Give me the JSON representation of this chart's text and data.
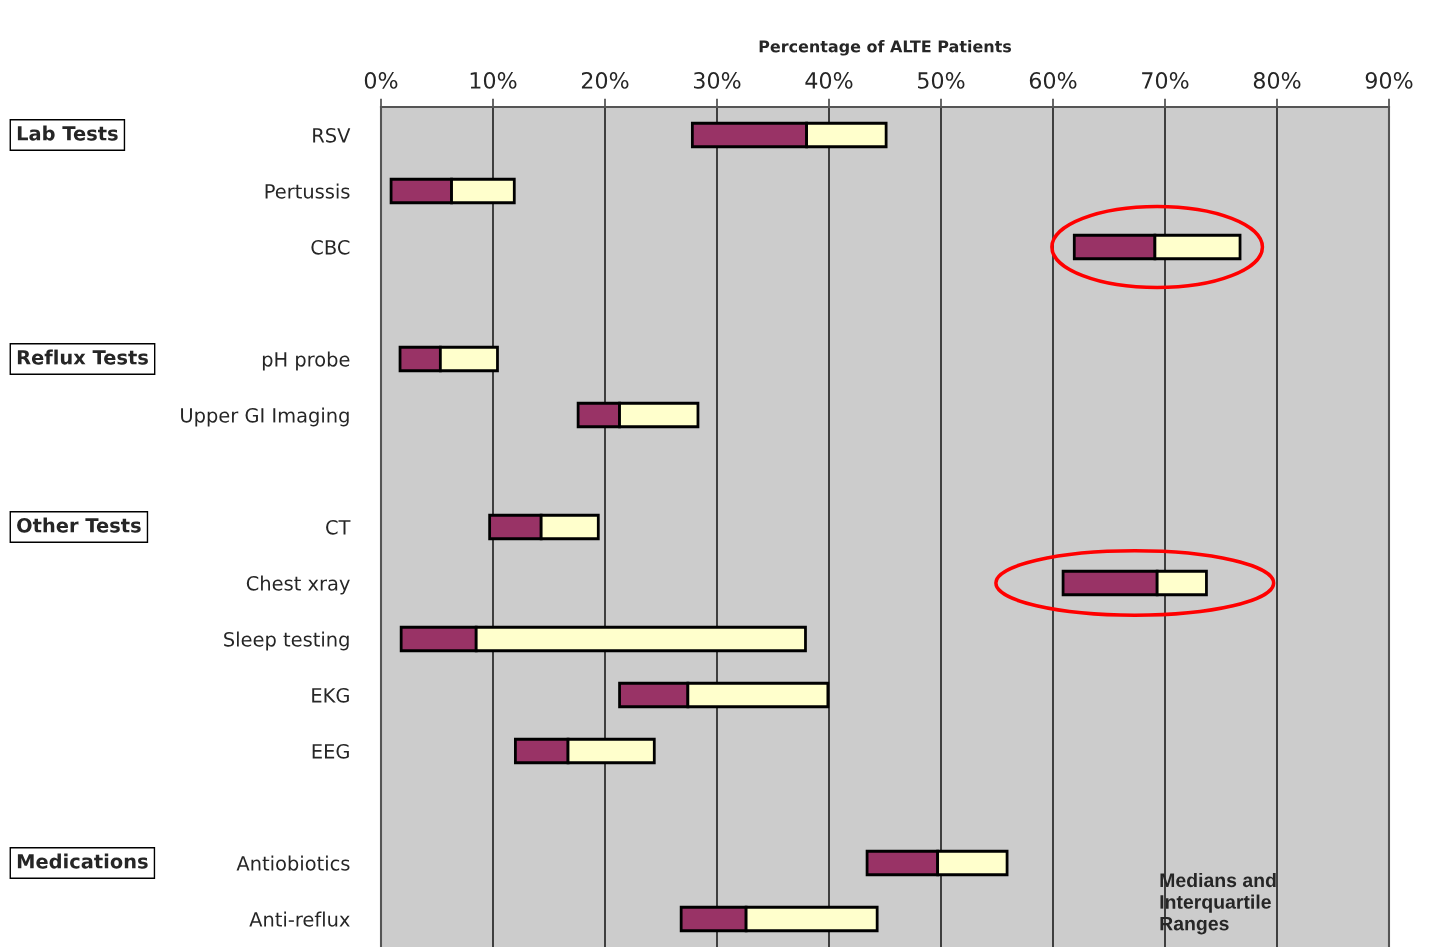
{
  "chart_data": {
    "type": "bar",
    "orientation": "horizontal",
    "xlabel": "Percentage of ALTE Patients",
    "categories": [
      "RSV",
      "Pertussis",
      "CBC",
      null,
      "pH probe",
      "Upper GI Imaging",
      null,
      "CT",
      "Chest xray",
      "Sleep testing",
      "EKG",
      "EEG",
      null,
      "Antiobiotics",
      "Anti-reflux"
    ],
    "series": [
      {
        "color": "#993366",
        "base": [
          27.8,
          0.9,
          61.9,
          null,
          1.7,
          17.6,
          null,
          9.7,
          60.9,
          1.8,
          21.3,
          12.0,
          null,
          43.4,
          26.8
        ],
        "values": [
          10.2,
          5.4,
          7.2,
          null,
          3.6,
          3.7,
          null,
          4.6,
          8.4,
          6.7,
          6.1,
          4.7,
          null,
          6.3,
          5.8
        ]
      },
      {
        "color": "#ffffcc",
        "base": [
          38.0,
          6.3,
          69.1,
          null,
          5.3,
          21.3,
          null,
          14.3,
          69.3,
          8.5,
          27.4,
          16.7,
          null,
          49.7,
          32.6
        ],
        "values": [
          7.1,
          5.6,
          7.6,
          null,
          5.1,
          7.0,
          null,
          5.1,
          4.4,
          29.4,
          12.5,
          7.7,
          null,
          6.2,
          11.7
        ]
      }
    ],
    "xlim": [
      0,
      90
    ],
    "xticks": [
      {
        "value": 0,
        "label": "0%"
      },
      {
        "value": 10,
        "label": "10%"
      },
      {
        "value": 20,
        "label": "20%"
      },
      {
        "value": 30,
        "label": "30%"
      },
      {
        "value": 40,
        "label": "40%"
      },
      {
        "value": 50,
        "label": "50%"
      },
      {
        "value": 60,
        "label": "60%"
      },
      {
        "value": 70,
        "label": "70%"
      },
      {
        "value": 80,
        "label": "80%"
      },
      {
        "value": 90,
        "label": "90%"
      }
    ],
    "grid": "x",
    "legend": false,
    "annotations": [
      "Lab Tests",
      "Reflux Tests",
      "Other Tests",
      "Medications",
      "Medians and\nInterquartile\nRanges"
    ]
  }
}
